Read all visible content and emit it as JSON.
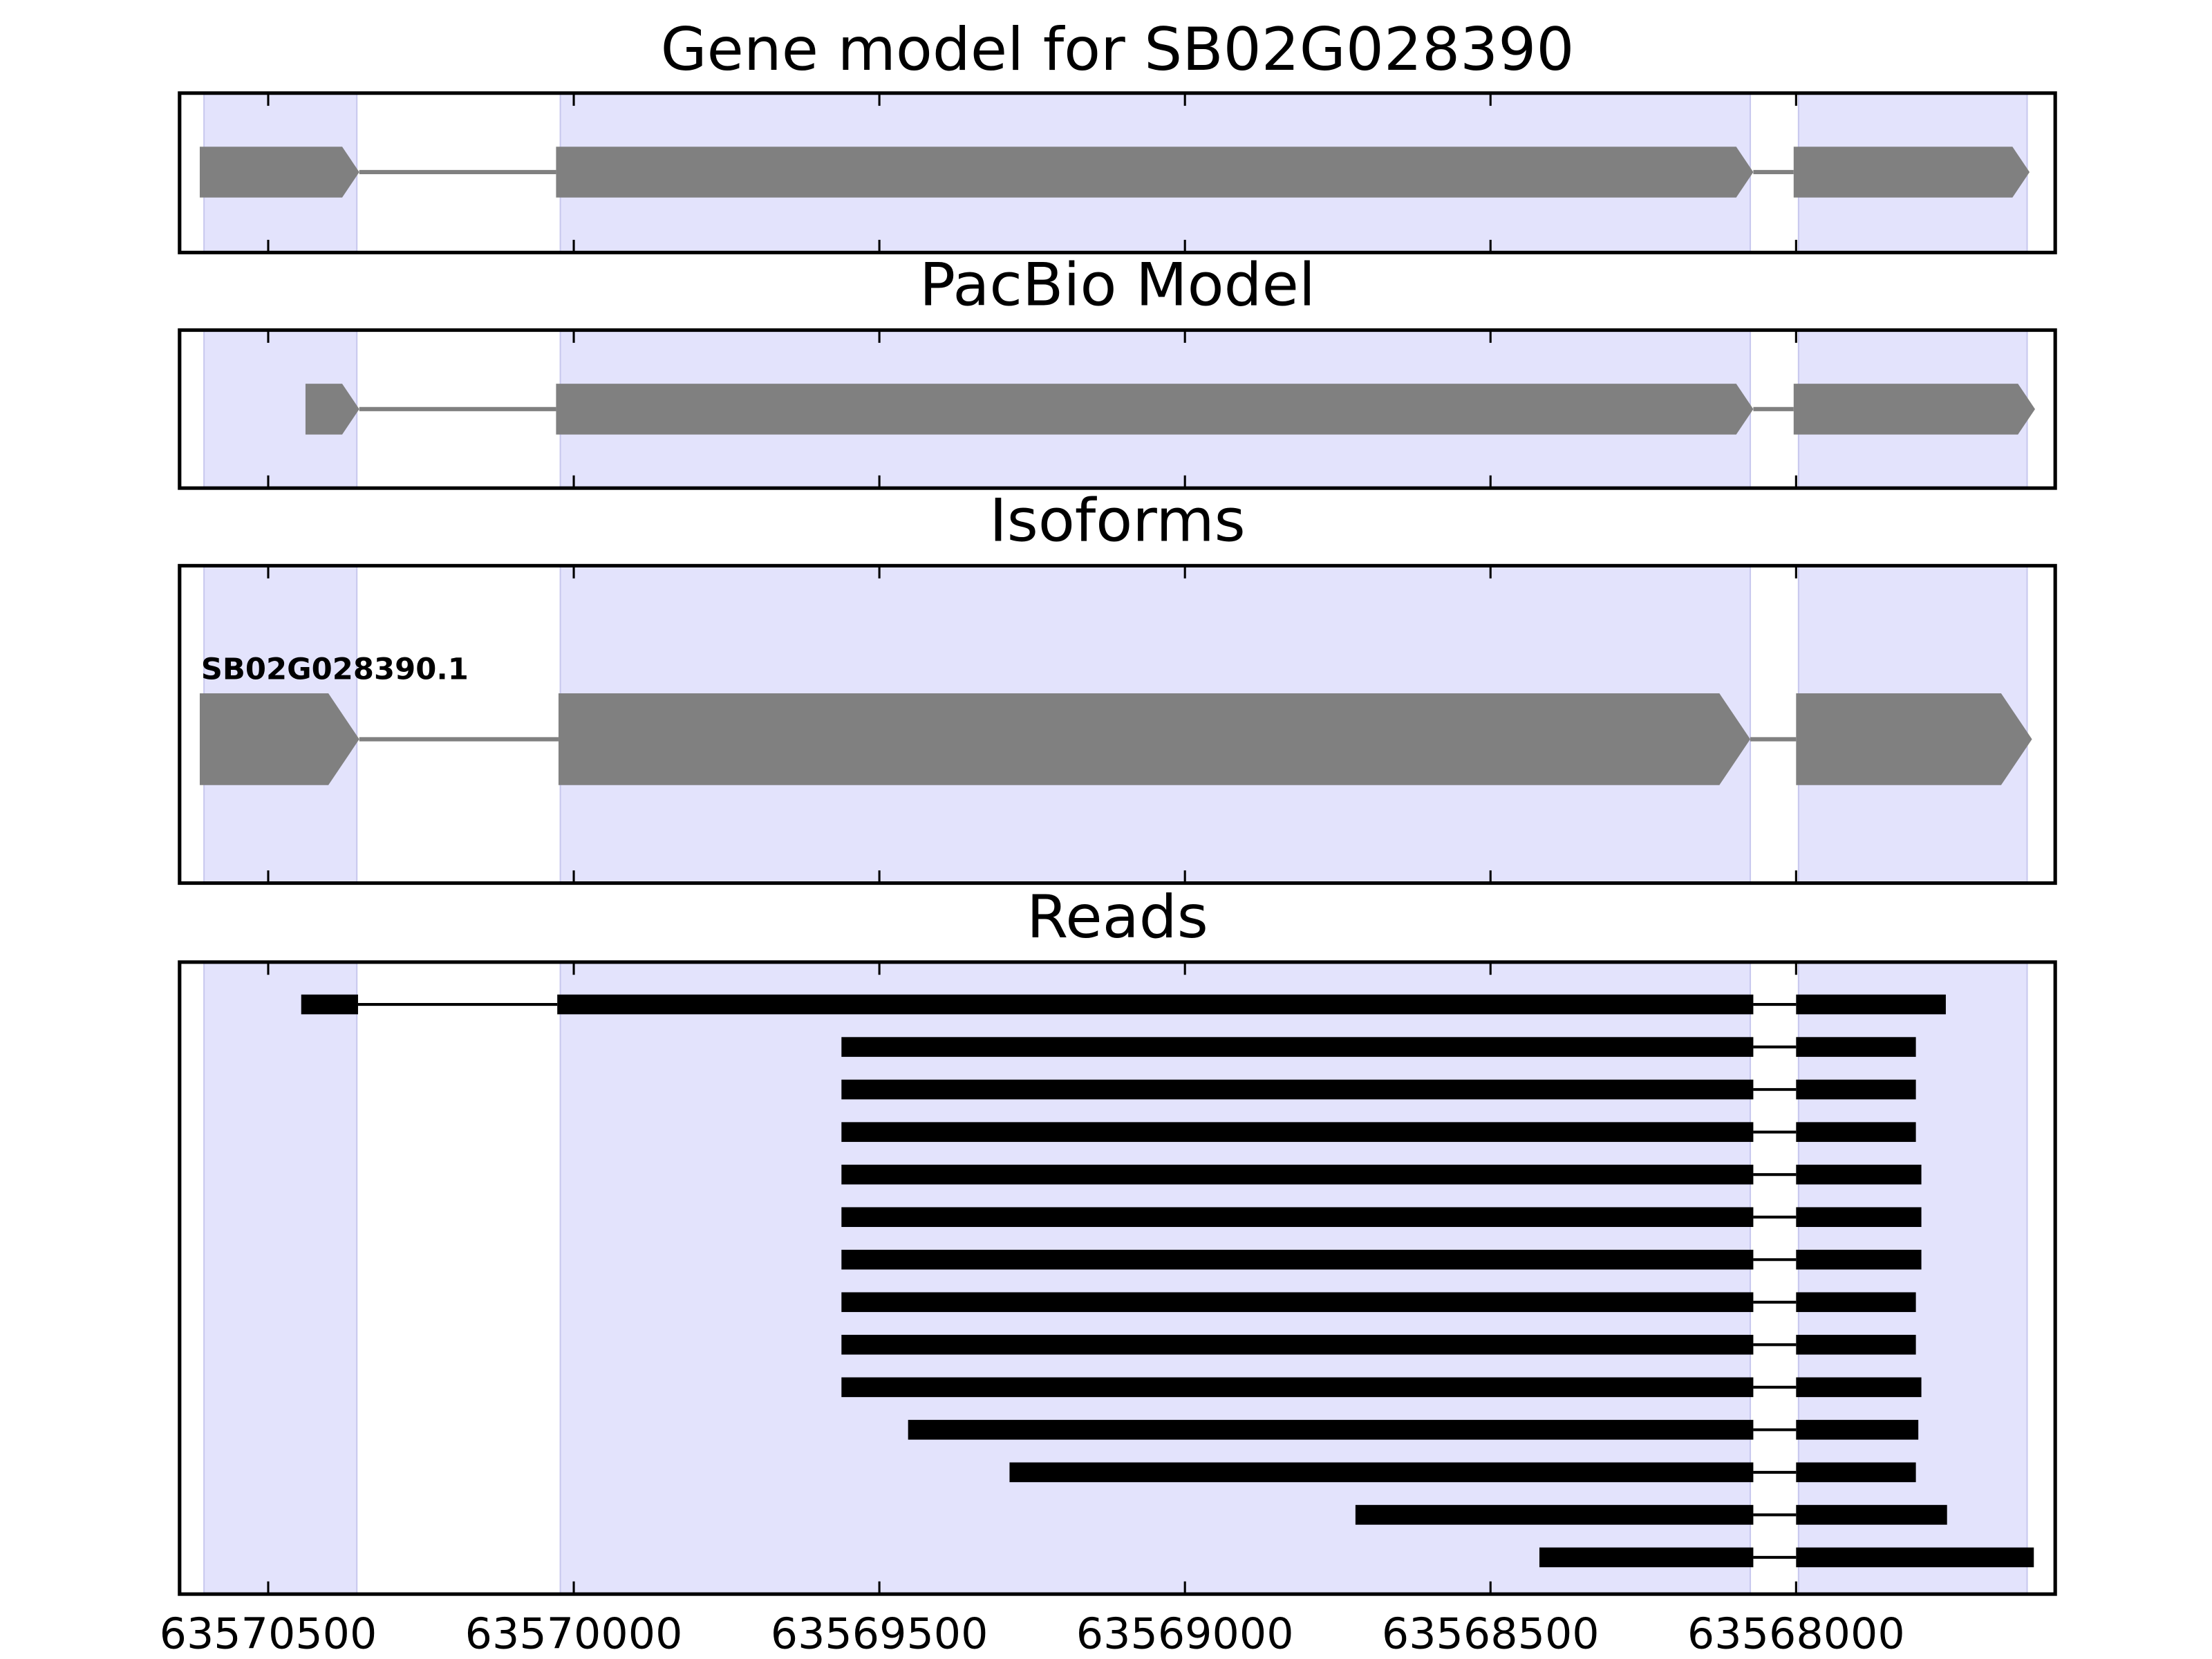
{
  "chart_data": [
    {
      "type": "gene-track",
      "title": "Gene model for SB02G028390",
      "xlim": [
        63570645,
        63567576
      ],
      "xticks": [
        63570500,
        63570000,
        63569500,
        63569000,
        63568500,
        63568000
      ],
      "tick_labels": false,
      "shaded": [
        [
          63570605,
          63570355
        ],
        [
          63570022,
          63568075
        ],
        [
          63567996,
          63567622
        ]
      ],
      "shade_color": "#e3e3fc",
      "color": "#808080",
      "features": [
        {
          "exons": [
            [
              63570612,
              63570351
            ],
            [
              63570029,
              63568070
            ],
            [
              63568004,
              63567618
            ]
          ]
        }
      ]
    },
    {
      "type": "gene-track",
      "title": "PacBio Model",
      "xlim": [
        63570645,
        63567576
      ],
      "xticks": [
        63570500,
        63570000,
        63569500,
        63569000,
        63568500,
        63568000
      ],
      "tick_labels": false,
      "shaded": [
        [
          63570605,
          63570355
        ],
        [
          63570022,
          63568075
        ],
        [
          63567996,
          63567622
        ]
      ],
      "shade_color": "#e3e3fc",
      "color": "#808080",
      "features": [
        {
          "exons": [
            [
              63570439,
              63570351
            ],
            [
              63570029,
              63568070
            ],
            [
              63568004,
              63567609
            ]
          ]
        }
      ]
    },
    {
      "type": "gene-track",
      "title": "Isoforms",
      "xlim": [
        63570645,
        63567576
      ],
      "xticks": [
        63570500,
        63570000,
        63569500,
        63569000,
        63568500,
        63568000
      ],
      "tick_labels": false,
      "shaded": [
        [
          63570605,
          63570355
        ],
        [
          63570022,
          63568075
        ],
        [
          63567996,
          63567622
        ]
      ],
      "shade_color": "#e3e3fc",
      "color": "#808080",
      "features": [
        {
          "name": "SB02G028390.1",
          "exons": [
            [
              63570612,
              63570351
            ],
            [
              63570025,
              63568075
            ],
            [
              63568000,
              63567614
            ]
          ]
        }
      ]
    },
    {
      "type": "reads",
      "title": "Reads",
      "xlim": [
        63570645,
        63567576
      ],
      "xticks": [
        63570500,
        63570000,
        63569500,
        63569000,
        63568500,
        63568000
      ],
      "tick_labels": true,
      "shaded": [
        [
          63570605,
          63570355
        ],
        [
          63570022,
          63568075
        ],
        [
          63567996,
          63567622
        ]
      ],
      "shade_color": "#e3e3fc",
      "color": "#000000",
      "features": [
        {
          "exons": [
            [
              63570446,
              63570353
            ],
            [
              63570027,
              63568070
            ],
            [
              63568000,
              63567755
            ]
          ]
        },
        {
          "exons": [
            [
              63569562,
              63568070
            ],
            [
              63568000,
              63567804
            ]
          ]
        },
        {
          "exons": [
            [
              63569562,
              63568070
            ],
            [
              63568000,
              63567804
            ]
          ]
        },
        {
          "exons": [
            [
              63569562,
              63568070
            ],
            [
              63568000,
              63567804
            ]
          ]
        },
        {
          "exons": [
            [
              63569562,
              63568070
            ],
            [
              63568000,
              63567795
            ]
          ]
        },
        {
          "exons": [
            [
              63569562,
              63568070
            ],
            [
              63568000,
              63567795
            ]
          ]
        },
        {
          "exons": [
            [
              63569562,
              63568070
            ],
            [
              63568000,
              63567795
            ]
          ]
        },
        {
          "exons": [
            [
              63569562,
              63568070
            ],
            [
              63568000,
              63567804
            ]
          ]
        },
        {
          "exons": [
            [
              63569562,
              63568070
            ],
            [
              63568000,
              63567804
            ]
          ]
        },
        {
          "exons": [
            [
              63569562,
              63568070
            ],
            [
              63568000,
              63567795
            ]
          ]
        },
        {
          "exons": [
            [
              63569453,
              63568070
            ],
            [
              63568000,
              63567800
            ]
          ]
        },
        {
          "exons": [
            [
              63569287,
              63568070
            ],
            [
              63568000,
              63567804
            ]
          ]
        },
        {
          "exons": [
            [
              63568721,
              63568070
            ],
            [
              63568000,
              63567753
            ]
          ]
        },
        {
          "exons": [
            [
              63568420,
              63568070
            ],
            [
              63568000,
              63567611
            ]
          ]
        }
      ]
    }
  ]
}
